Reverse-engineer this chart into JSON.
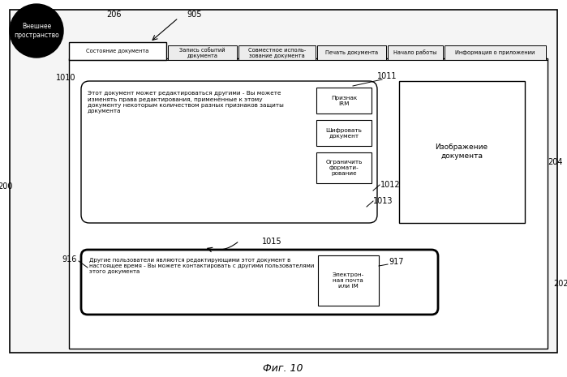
{
  "fig_width": 6.99,
  "fig_height": 4.65,
  "bg_color": "#ffffff",
  "title": "Фиг. 10",
  "tab_labels": [
    "Состояние документа",
    "Запись событий\nдокумента",
    "Совместное исполь-\nзование документа",
    "Печать документа",
    "Начало работы",
    "Информация о приложении"
  ],
  "label_206": "206",
  "label_905": "905",
  "label_200": "200",
  "label_202": "202",
  "label_204": "204",
  "label_1010": "1010",
  "label_1011": "1011",
  "label_1012": "1012",
  "label_1013": "1013",
  "label_1015": "1015",
  "label_916": "916",
  "label_917": "917",
  "circle_label": "Внешнее\nпространство",
  "main_box_text": "Этот документ может редактироваться другими - Вы можете\nизменять права редактирования, применённые к этому\nдокументу некоторым количеством разных признаков защиты\nдокумента",
  "btn1_text": "Признак\nIRM",
  "btn2_text": "Шифровать\nдокумент",
  "btn3_text": "Ограничить\nформати-\nрование",
  "doc_image_text": "Изображение\nдокумента",
  "bottom_box_text": "Другие пользователи являются редактирующими этот документ в\nнастоящее время - Вы можете контактировать с другими пользователями\nэтого документа",
  "email_btn_text": "Электрон-\nная почта\nили IM"
}
